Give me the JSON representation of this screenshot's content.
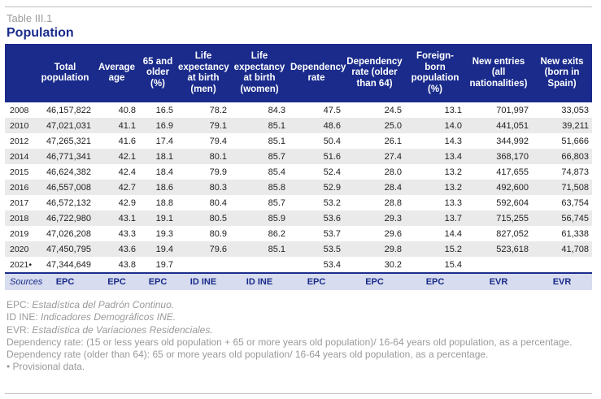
{
  "table_label": "Table III.1",
  "title": "Population",
  "headers": [
    "",
    "Total population",
    "Average age",
    "65 and older (%)",
    "Life expectancy at birth (men)",
    "Life expectancy at birth (women)",
    "Dependency rate",
    "Dependency rate (older than 64)",
    "Foreign-born population (%)",
    "New entries (all nationalities)",
    "New exits (born in Spain)"
  ],
  "rows": [
    [
      "2008",
      "46,157,822",
      "40.8",
      "16.5",
      "78.2",
      "84.3",
      "47.5",
      "24.5",
      "13.1",
      "701,997",
      "33,053"
    ],
    [
      "2010",
      "47,021,031",
      "41.1",
      "16.9",
      "79.1",
      "85.1",
      "48.6",
      "25.0",
      "14.0",
      "441,051",
      "39,211"
    ],
    [
      "2012",
      "47,265,321",
      "41.6",
      "17.4",
      "79.4",
      "85.1",
      "50.4",
      "26.1",
      "14.3",
      "344,992",
      "51,666"
    ],
    [
      "2014",
      "46,771,341",
      "42.1",
      "18.1",
      "80.1",
      "85.7",
      "51.6",
      "27.4",
      "13.4",
      "368,170",
      "66,803"
    ],
    [
      "2015",
      "46,624,382",
      "42.4",
      "18.4",
      "79.9",
      "85.4",
      "52.4",
      "28.0",
      "13.2",
      "417,655",
      "74,873"
    ],
    [
      "2016",
      "46,557,008",
      "42.7",
      "18.6",
      "80.3",
      "85.8",
      "52.9",
      "28.4",
      "13.2",
      "492,600",
      "71,508"
    ],
    [
      "2017",
      "46,572,132",
      "42.9",
      "18.8",
      "80.4",
      "85.7",
      "53.2",
      "28.8",
      "13.3",
      "592,604",
      "63,754"
    ],
    [
      "2018",
      "46,722,980",
      "43.1",
      "19.1",
      "80.5",
      "85.9",
      "53.6",
      "29.3",
      "13.7",
      "715,255",
      "56,745"
    ],
    [
      "2019",
      "47,026,208",
      "43.3",
      "19.3",
      "80.9",
      "86.2",
      "53.7",
      "29.6",
      "14.4",
      "827,052",
      "61,338"
    ],
    [
      "2020",
      "47,450,795",
      "43.6",
      "19.4",
      "79.6",
      "85.1",
      "53.5",
      "29.8",
      "15.2",
      "523,618",
      "41,708"
    ],
    [
      "2021•",
      "47,344,649",
      "43.8",
      "19.7",
      "",
      "",
      "53.4",
      "30.2",
      "15.4",
      "",
      ""
    ]
  ],
  "sources": [
    "Sources",
    "EPC",
    "EPC",
    "EPC",
    "ID INE",
    "ID INE",
    "EPC",
    "EPC",
    "EPC",
    "EVR",
    "EVR"
  ],
  "notes": [
    {
      "abbr": "EPC: ",
      "full": "Estadística del Padrón Continuo."
    },
    {
      "abbr": "ID INE: ",
      "full": "Indicadores Demográficos INE."
    },
    {
      "abbr": "EVR: ",
      "full": "Estadística de Variaciones Residenciales."
    },
    {
      "abbr": "",
      "full": "",
      "plain": "Dependency rate: (15 or less years old population + 65 or more years old population)/ 16-64 years old population, as a percentage."
    },
    {
      "abbr": "",
      "full": "",
      "plain": "Dependency rate (older than 64): 65 or more years old population/ 16-64 years old population, as a percentage."
    },
    {
      "abbr": "",
      "full": "",
      "plain": "• Provisional data."
    }
  ]
}
